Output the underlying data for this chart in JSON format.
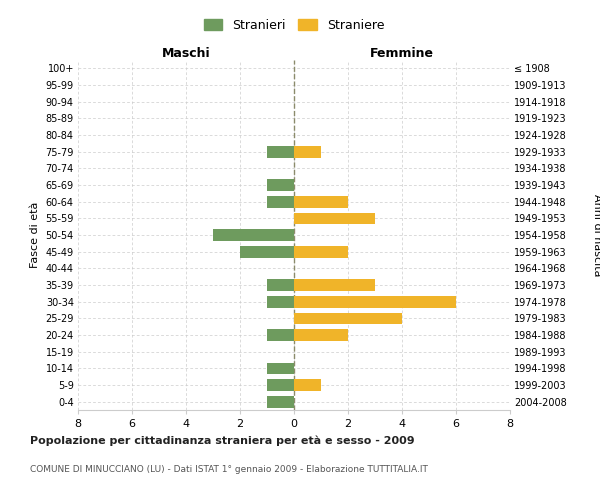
{
  "age_groups": [
    "100+",
    "95-99",
    "90-94",
    "85-89",
    "80-84",
    "75-79",
    "70-74",
    "65-69",
    "60-64",
    "55-59",
    "50-54",
    "45-49",
    "40-44",
    "35-39",
    "30-34",
    "25-29",
    "20-24",
    "15-19",
    "10-14",
    "5-9",
    "0-4"
  ],
  "anni_nascita": [
    "≤ 1908",
    "1909-1913",
    "1914-1918",
    "1919-1923",
    "1924-1928",
    "1929-1933",
    "1934-1938",
    "1939-1943",
    "1944-1948",
    "1949-1953",
    "1954-1958",
    "1959-1963",
    "1964-1968",
    "1969-1973",
    "1974-1978",
    "1979-1983",
    "1984-1988",
    "1989-1993",
    "1994-1998",
    "1999-2003",
    "2004-2008"
  ],
  "stranieri": [
    0,
    0,
    0,
    0,
    0,
    1,
    0,
    1,
    1,
    0,
    3,
    2,
    0,
    1,
    1,
    0,
    1,
    0,
    1,
    1,
    1
  ],
  "straniere": [
    0,
    0,
    0,
    0,
    0,
    1,
    0,
    0,
    2,
    3,
    0,
    2,
    0,
    3,
    6,
    4,
    2,
    0,
    0,
    1,
    0
  ],
  "color_stranieri": "#6e9b5e",
  "color_straniere": "#f0b429",
  "color_center_line": "#8b8b6b",
  "xlim": 8,
  "title": "Popolazione per cittadinanza straniera per età e sesso - 2009",
  "subtitle": "COMUNE DI MINUCCIANO (LU) - Dati ISTAT 1° gennaio 2009 - Elaborazione TUTTITALIA.IT",
  "xlabel_left": "Maschi",
  "xlabel_right": "Femmine",
  "ylabel_left": "Fasce di età",
  "ylabel_right": "Anni di nascita",
  "legend_stranieri": "Stranieri",
  "legend_straniere": "Straniere",
  "background_color": "#ffffff",
  "grid_color": "#cccccc",
  "grid_color_dark": "#aaaaaa"
}
